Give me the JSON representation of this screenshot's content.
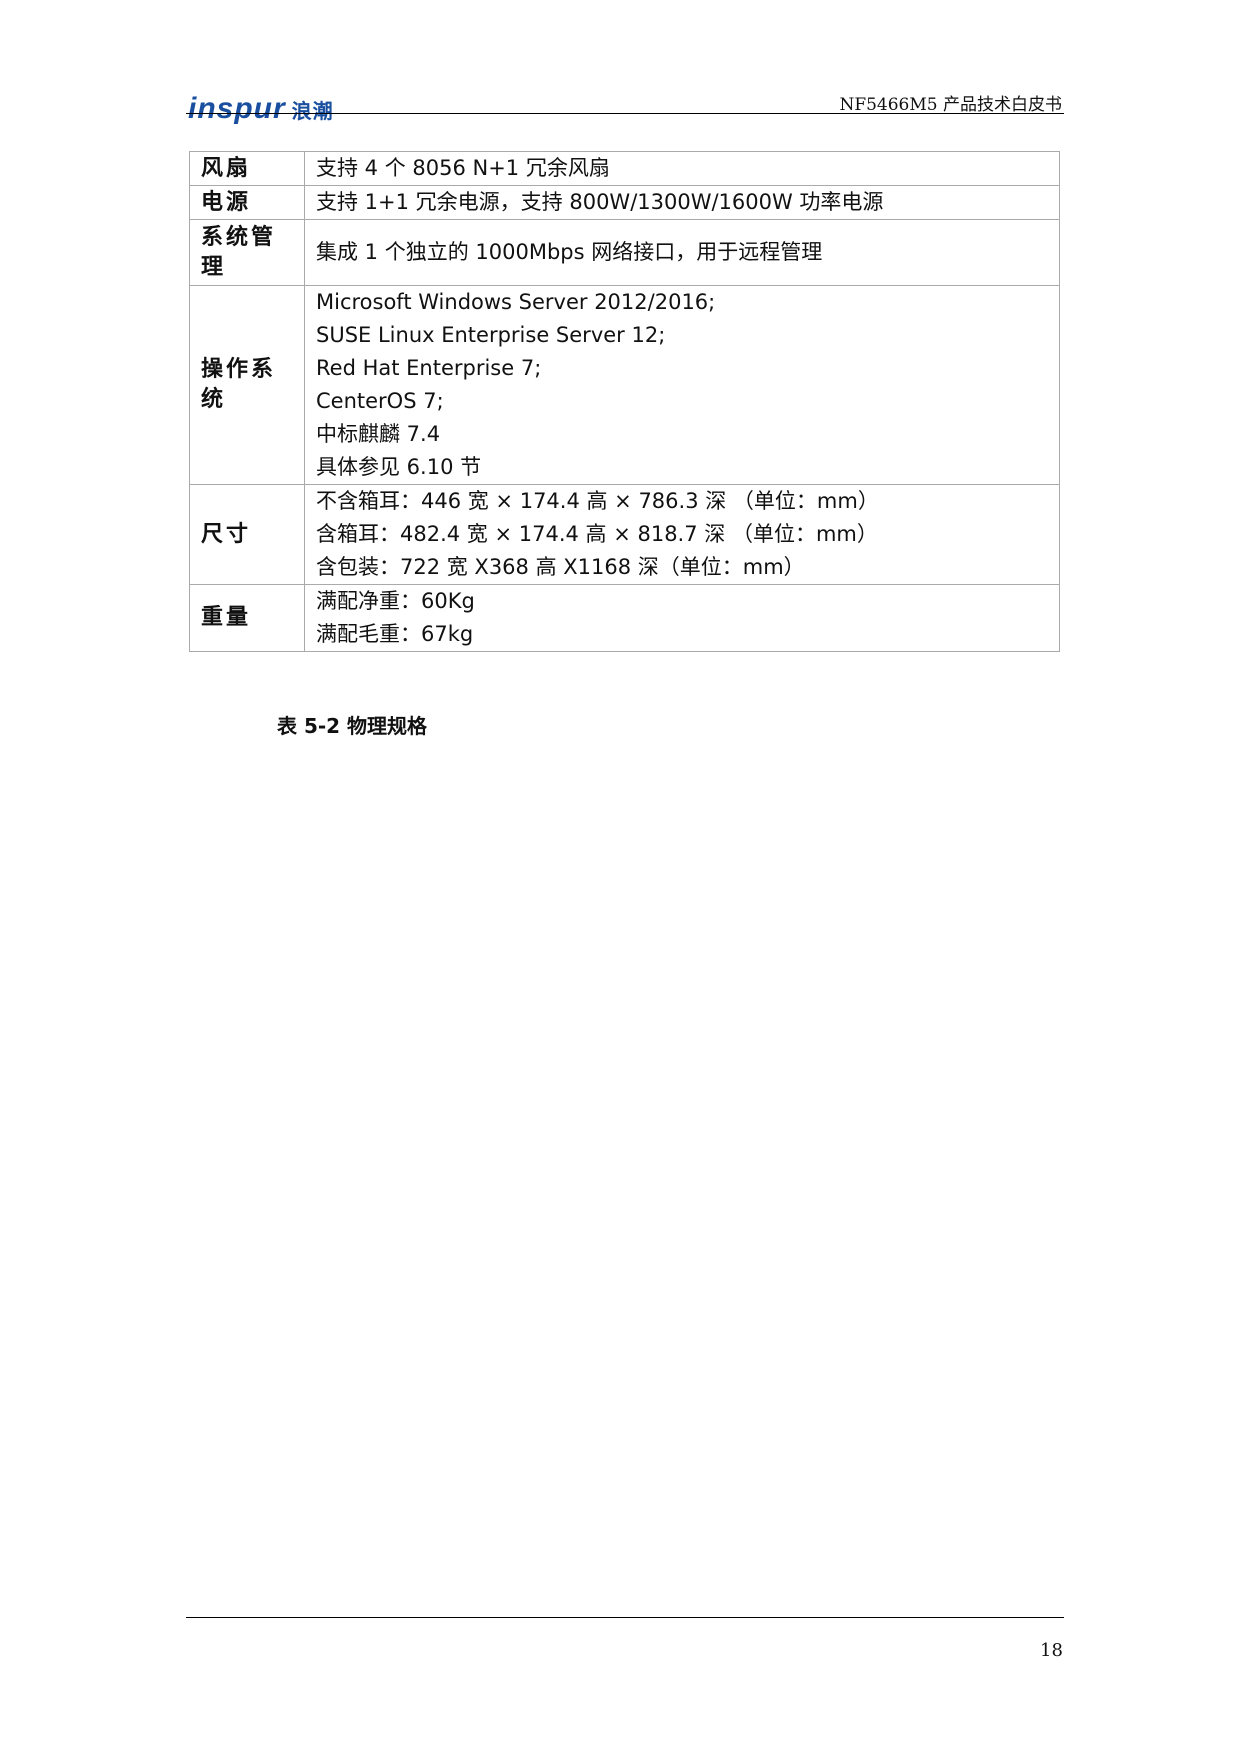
{
  "header": {
    "logo_text": "inspur",
    "logo_cn": "浪潮",
    "title": "NF5466M5 产品技术白皮书"
  },
  "table": {
    "rows": [
      {
        "key": "风扇",
        "lines": [
          "支持 4 个 8056 N+1 冗余风扇"
        ]
      },
      {
        "key": "电源",
        "lines": [
          "支持 1+1 冗余电源，支持 800W/1300W/1600W 功率电源"
        ]
      },
      {
        "key": "系统管理",
        "lines": [
          "集成 1 个独立的 1000Mbps  网络接口，用于远程管理"
        ]
      },
      {
        "key": "操作系统",
        "lines": [
          "Microsoft Windows Server 2012/2016;",
          "SUSE Linux Enterprise Server 12;",
          "Red Hat Enterprise 7;",
          "CenterOS 7;",
          "中标麒麟 7.4",
          "具体参见 6.10 节"
        ]
      },
      {
        "key": "尺寸",
        "lines": [
          "不含箱耳：446  宽  × 174.4  高  × 786.3  深  （单位：mm）",
          "含箱耳：482.4  宽  × 174.4  高  × 818.7  深  （单位：mm）",
          "含包装：722 宽 X368 高 X1168 深（单位：mm）"
        ]
      },
      {
        "key": "重量",
        "lines": [
          "满配净重：60Kg",
          "满配毛重：67kg"
        ]
      }
    ]
  },
  "caption": "表 5-2  物理规格",
  "footer": {
    "page_number": "18"
  }
}
